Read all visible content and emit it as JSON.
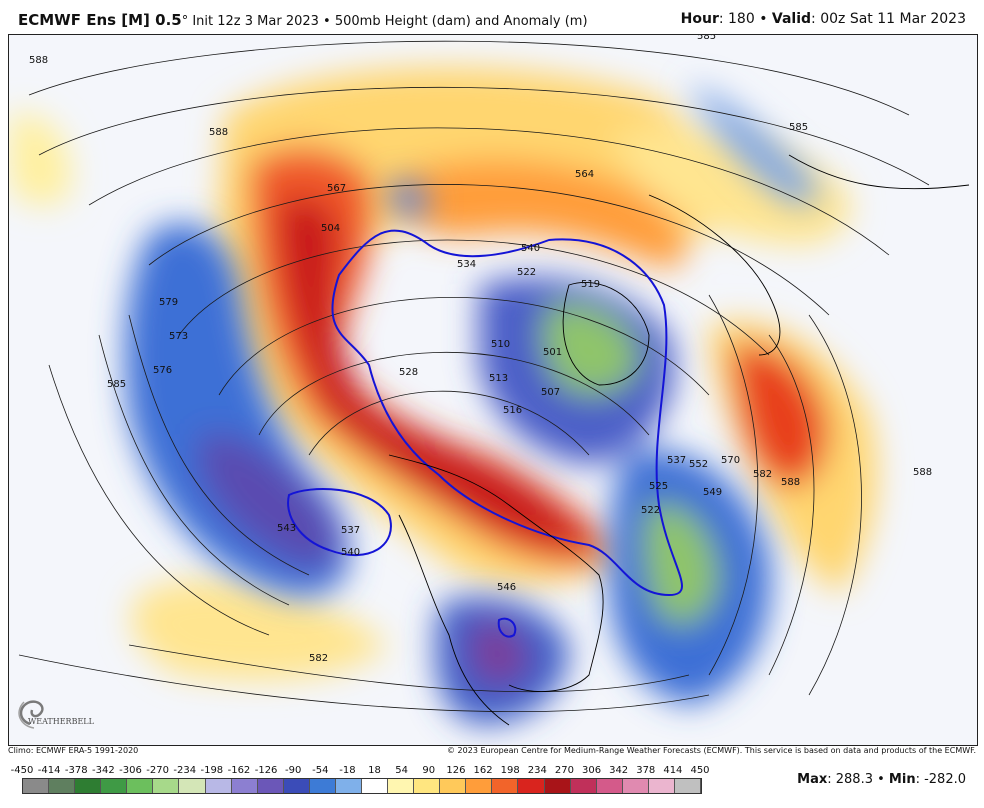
{
  "header": {
    "model": "ECMWF Ens [M] 0.5",
    "degree": "°",
    "init": " Init 12z 3 Mar 2023 • 500mb Height (dam) and Anomaly (m)",
    "hour_label": "Hour",
    "hour_value": ": 180 • ",
    "valid_label": "Valid",
    "valid_value": ": 00z Sat 11 Mar 2023"
  },
  "credits": {
    "climo": "Climo: ECMWF ERA-5 1991-2020",
    "copyright": "© 2023 European Centre for Medium-Range Weather Forecasts (ECMWF). This service is based on data and products of the ECMWF."
  },
  "logo": {
    "text": "WEATHERBELL"
  },
  "scale": {
    "labels": [
      "-450",
      "-414",
      "-378",
      "-342",
      "-306",
      "-270",
      "-234",
      "-198",
      "-162",
      "-126",
      "-90",
      "-54",
      "-18",
      "18",
      "54",
      "90",
      "126",
      "162",
      "198",
      "234",
      "270",
      "306",
      "342",
      "378",
      "414",
      "450"
    ],
    "colors": [
      "#8a8a8a",
      "#5f7f5f",
      "#2e7d32",
      "#3f9a45",
      "#6cbf5d",
      "#a7d98a",
      "#d4e6b7",
      "#b8b8e6",
      "#8c7fd1",
      "#6b57b8",
      "#3b4cb8",
      "#3d7bd6",
      "#7fb0ea",
      "#ffffff",
      "#fff6b0",
      "#ffe680",
      "#ffc95a",
      "#ff9d3a",
      "#f2642a",
      "#d9241e",
      "#a81418",
      "#c0305a",
      "#d45a8a",
      "#e08ab0",
      "#ebb5cf",
      "#c0c0c0"
    ]
  },
  "stats": {
    "max_label": "Max",
    "max_value": ": 288.3 • ",
    "min_label": "Min",
    "min_value": ": -282.0"
  },
  "map": {
    "contour_labels": [
      "588",
      "588",
      "585",
      "567",
      "564",
      "540",
      "534",
      "522",
      "519",
      "501",
      "507",
      "510",
      "513",
      "516",
      "528",
      "504",
      "576",
      "573",
      "579",
      "585",
      "543",
      "537",
      "540",
      "582",
      "549",
      "552",
      "525",
      "522",
      "537",
      "570",
      "582",
      "588",
      "588",
      "585",
      "546"
    ]
  }
}
